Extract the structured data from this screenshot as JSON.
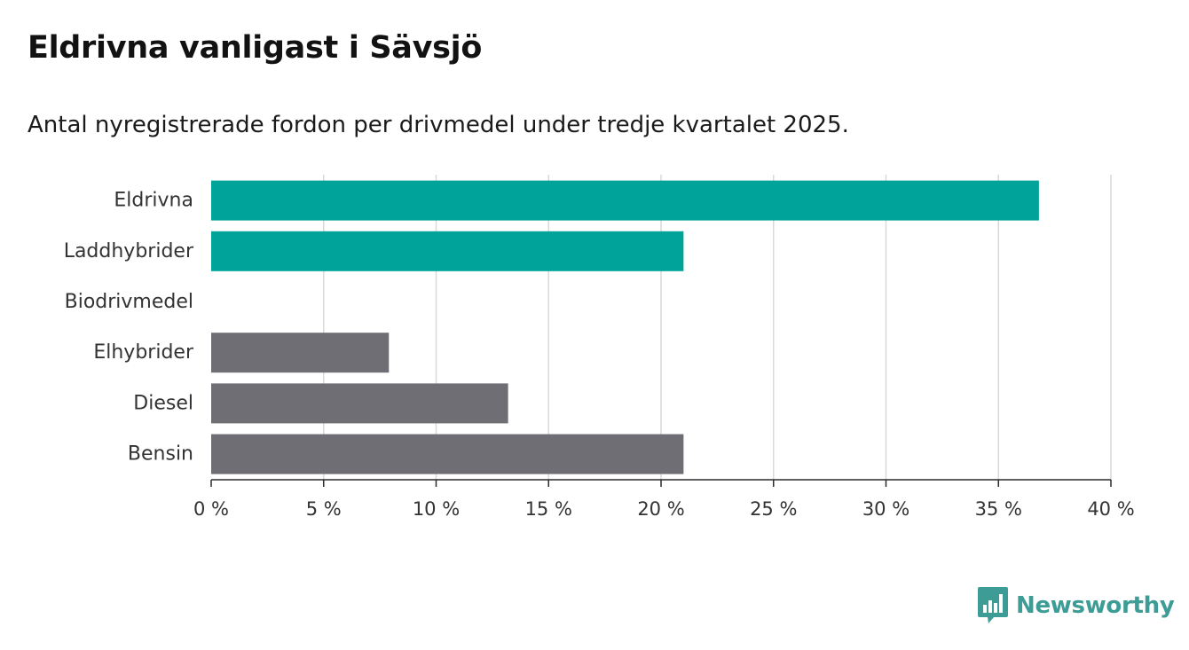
{
  "chart_data": {
    "type": "bar",
    "orientation": "horizontal",
    "title": "Eldrivna vanligast i Sävsjö",
    "subtitle": "Antal nyregistrerade fordon per drivmedel under tredje kvartalet 2025.",
    "categories": [
      "Eldrivna",
      "Laddhybrider",
      "Biodrivmedel",
      "Elhybrider",
      "Diesel",
      "Bensin"
    ],
    "values": [
      36.8,
      21.0,
      0,
      7.9,
      13.2,
      21.0
    ],
    "colors": [
      "#00a39a",
      "#00a39a",
      "#00a39a",
      "#6f6e74",
      "#6f6e74",
      "#6f6e74"
    ],
    "xlabel": "",
    "ylabel": "",
    "xlim": [
      0,
      40
    ],
    "ticks": [
      0,
      5,
      10,
      15,
      20,
      25,
      30,
      35,
      40
    ],
    "tick_labels": [
      "0 %",
      "5 %",
      "10 %",
      "15 %",
      "20 %",
      "25 %",
      "30 %",
      "35 %",
      "40 %"
    ],
    "grid": true
  },
  "brand": {
    "name": "Newsworthy",
    "color": "#3d9c95"
  }
}
